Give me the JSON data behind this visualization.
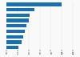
{
  "values": [
    10000,
    5100,
    4200,
    4000,
    3600,
    3300,
    3000,
    2700,
    2100
  ],
  "bar_color": "#1a6faf",
  "background_color": "#f9f9f9",
  "grid_color": "#dddddd",
  "xlim": [
    0,
    13000
  ],
  "bar_height": 0.65,
  "figsize": [
    1.0,
    0.71
  ],
  "dpi": 100,
  "xtick_values": [
    0,
    2000,
    4000,
    6000,
    8000,
    10000,
    12000
  ],
  "xtick_labels": [
    "0",
    "2",
    "4",
    "6",
    "8",
    "10",
    "12"
  ]
}
